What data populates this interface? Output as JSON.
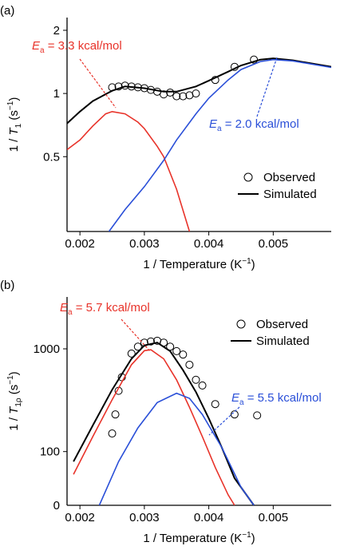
{
  "chart_data": [
    {
      "type": "line",
      "panel_label": "(a)",
      "ylabel": [
        "1 / ",
        "T",
        "1",
        " (s",
        "−1",
        ")"
      ],
      "xlabel": [
        "1 / Temperature (K",
        "−1",
        ")"
      ],
      "xlim": [
        0.0018,
        0.0059
      ],
      "xticks": [
        0.002,
        0.003,
        0.004,
        0.005
      ],
      "ylim": [
        0.22,
        2.3
      ],
      "yticks": [
        0.5,
        1,
        2
      ],
      "log_y": true,
      "legend": "lower right",
      "series": [
        {
          "name": "Observed",
          "kind": "markers",
          "color": "#000000",
          "x": [
            0.0025,
            0.0026,
            0.0027,
            0.0028,
            0.0029,
            0.003,
            0.0031,
            0.0032,
            0.0033,
            0.0034,
            0.0035,
            0.0036,
            0.0037,
            0.0038,
            0.0041,
            0.0044,
            0.0047
          ],
          "values": [
            1.07,
            1.08,
            1.09,
            1.08,
            1.07,
            1.06,
            1.04,
            1.02,
            0.99,
            1.01,
            0.97,
            0.97,
            0.98,
            1.0,
            1.16,
            1.34,
            1.45
          ]
        },
        {
          "name": "Simulated",
          "kind": "line",
          "color": "#000000",
          "x": [
            0.0018,
            0.002,
            0.0022,
            0.0025,
            0.0027,
            0.003,
            0.0033,
            0.0035,
            0.0038,
            0.004,
            0.0043,
            0.0045,
            0.0048,
            0.005,
            0.0053,
            0.0059
          ],
          "values": [
            0.72,
            0.82,
            0.92,
            1.03,
            1.08,
            1.06,
            1.02,
            1.02,
            1.08,
            1.15,
            1.27,
            1.36,
            1.45,
            1.47,
            1.44,
            1.34
          ]
        },
        {
          "kind": "line",
          "color": "#e8332a",
          "x": [
            0.0018,
            0.002,
            0.0022,
            0.0024,
            0.0025,
            0.0027,
            0.0029,
            0.003,
            0.0032,
            0.0033,
            0.0035,
            0.0037
          ],
          "values": [
            0.54,
            0.6,
            0.7,
            0.8,
            0.82,
            0.8,
            0.73,
            0.68,
            0.56,
            0.5,
            0.35,
            0.22
          ]
        },
        {
          "kind": "line",
          "color": "#2a4fd8",
          "x": [
            0.00245,
            0.0027,
            0.003,
            0.0033,
            0.0035,
            0.0038,
            0.004,
            0.0043,
            0.0045,
            0.0048,
            0.005,
            0.0053,
            0.0059
          ],
          "values": [
            0.22,
            0.28,
            0.36,
            0.48,
            0.6,
            0.8,
            0.95,
            1.16,
            1.3,
            1.42,
            1.45,
            1.43,
            1.33
          ]
        }
      ],
      "annotations": [
        {
          "symbol": "E",
          "subscript": "a",
          "text": " = 3.3 kcal/mol",
          "color": "#e8332a"
        },
        {
          "symbol": "E",
          "subscript": "a",
          "text": " = 2.0 kcal/mol",
          "color": "#2a4fd8"
        }
      ]
    },
    {
      "type": "line",
      "panel_label": "(b)",
      "ylabel": [
        "1 / ",
        "T",
        "1ρ",
        " (s",
        "−1",
        ")"
      ],
      "xlabel": [
        "1 / Temperature (K",
        "−1",
        ")"
      ],
      "xlim": [
        0.0018,
        0.0059
      ],
      "xticks": [
        0.002,
        0.003,
        0.004,
        0.005
      ],
      "ylim": [
        30,
        3200
      ],
      "yticks": [
        100,
        1000
      ],
      "y_origin_label": "0",
      "log_y": true,
      "legend": "upper right",
      "series": [
        {
          "name": "Observed",
          "kind": "markers",
          "color": "#000000",
          "x": [
            0.0025,
            0.00255,
            0.0026,
            0.00265,
            0.0028,
            0.0029,
            0.003,
            0.0031,
            0.0032,
            0.0033,
            0.0034,
            0.0035,
            0.0036,
            0.0037,
            0.0038,
            0.0039,
            0.0041,
            0.0044,
            0.00475
          ],
          "values": [
            150,
            230,
            390,
            530,
            900,
            1050,
            1150,
            1180,
            1200,
            1150,
            1050,
            950,
            880,
            700,
            500,
            440,
            290,
            230,
            225
          ]
        },
        {
          "name": "Simulated",
          "kind": "line",
          "color": "#000000",
          "x": [
            0.0019,
            0.0022,
            0.0025,
            0.0028,
            0.003,
            0.0032,
            0.0034,
            0.0036,
            0.0038,
            0.004,
            0.0042,
            0.0044,
            0.0047
          ],
          "values": [
            80,
            180,
            400,
            800,
            1080,
            1150,
            950,
            620,
            380,
            210,
            110,
            55,
            30
          ]
        },
        {
          "kind": "line",
          "color": "#e8332a",
          "x": [
            0.0019,
            0.0022,
            0.0025,
            0.0028,
            0.003,
            0.0031,
            0.0033,
            0.0035,
            0.0037,
            0.0039,
            0.0041,
            0.0043,
            0.0044
          ],
          "values": [
            60,
            140,
            320,
            700,
            960,
            980,
            800,
            500,
            270,
            140,
            70,
            38,
            30
          ]
        },
        {
          "kind": "line",
          "color": "#2a4fd8",
          "x": [
            0.0023,
            0.0026,
            0.0029,
            0.0032,
            0.0035,
            0.0037,
            0.0039,
            0.0042,
            0.0045,
            0.0047
          ],
          "values": [
            30,
            80,
            170,
            300,
            370,
            330,
            230,
            110,
            45,
            30
          ]
        }
      ],
      "annotations": [
        {
          "symbol": "E",
          "subscript": "a",
          "text": " = 5.7 kcal/mol",
          "color": "#e8332a"
        },
        {
          "symbol": "E",
          "subscript": "a",
          "text": " = 5.5 kcal/mol",
          "color": "#2a4fd8"
        }
      ]
    }
  ]
}
